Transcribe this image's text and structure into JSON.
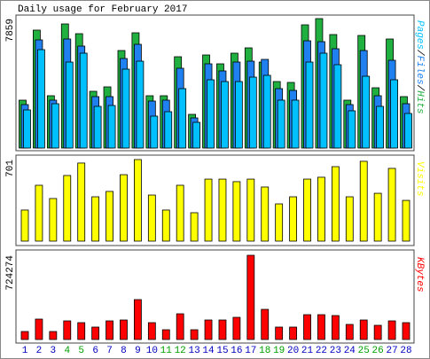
{
  "chart_data": [
    {
      "type": "bar",
      "title": "Daily usage for February 2017",
      "categories": [
        "1",
        "2",
        "3",
        "4",
        "5",
        "6",
        "7",
        "8",
        "9",
        "10",
        "11",
        "12",
        "13",
        "14",
        "15",
        "16",
        "17",
        "18",
        "19",
        "20",
        "21",
        "22",
        "23",
        "24",
        "25",
        "26",
        "27",
        "28"
      ],
      "legend_separator": "/",
      "series": [
        {
          "name": "Pages",
          "color": "#00c0ff",
          "values": [
            2315,
            5975,
            2692,
            5221,
            5760,
            2530,
            2584,
            4791,
            5275,
            1938,
            2207,
            3607,
            1561,
            4145,
            4037,
            4037,
            4306,
            4414,
            2907,
            2907,
            5221,
            5760,
            5060,
            2261,
            4360,
            2530,
            4145,
            2099
          ]
        },
        {
          "name": "Files",
          "color": "#2080f0",
          "values": [
            2638,
            6567,
            2907,
            6621,
            6190,
            3122,
            3122,
            5437,
            6298,
            2853,
            2907,
            4845,
            1830,
            5114,
            4683,
            5221,
            5275,
            5383,
            3607,
            3499,
            6513,
            6459,
            6029,
            2638,
            5921,
            3176,
            5329,
            2692
          ]
        },
        {
          "name": "Hits",
          "color": "#20b040",
          "values": [
            2907,
            7160,
            3176,
            7536,
            6944,
            3445,
            3714,
            5921,
            6998,
            3176,
            3176,
            5544,
            2045,
            5652,
            5114,
            5760,
            6083,
            5221,
            4037,
            3983,
            7482,
            7859,
            6890,
            2907,
            6836,
            3660,
            6621,
            3122
          ]
        }
      ],
      "ylim": [
        0,
        7859
      ],
      "yticks": [
        7859
      ]
    },
    {
      "type": "bar",
      "categories": [
        "1",
        "2",
        "3",
        "4",
        "5",
        "6",
        "7",
        "8",
        "9",
        "10",
        "11",
        "12",
        "13",
        "14",
        "15",
        "16",
        "17",
        "18",
        "19",
        "20",
        "21",
        "22",
        "23",
        "24",
        "25",
        "26",
        "27",
        "28"
      ],
      "series": [
        {
          "name": "Visits",
          "color": "#ffff00",
          "values": [
            267,
            480,
            366,
            564,
            671,
            381,
            427,
            571,
            701,
            396,
            267,
            480,
            244,
            533,
            533,
            511,
            533,
            465,
            320,
            381,
            533,
            549,
            640,
            381,
            686,
            411,
            625,
            350
          ]
        }
      ],
      "ylim": [
        0,
        701
      ],
      "yticks": [
        701
      ]
    },
    {
      "type": "bar",
      "categories": [
        "1",
        "2",
        "3",
        "4",
        "5",
        "6",
        "7",
        "8",
        "9",
        "10",
        "11",
        "12",
        "13",
        "14",
        "15",
        "16",
        "17",
        "18",
        "19",
        "20",
        "21",
        "22",
        "23",
        "24",
        "25",
        "26",
        "27",
        "28"
      ],
      "category_colors": [
        "#0000c0",
        "#0000c0",
        "#0000c0",
        "#00a000",
        "#00a000",
        "#0000c0",
        "#0000c0",
        "#0000c0",
        "#0000c0",
        "#0000c0",
        "#00a000",
        "#00a000",
        "#0000c0",
        "#0000c0",
        "#0000c0",
        "#0000c0",
        "#0000c0",
        "#00a000",
        "#00a000",
        "#0000c0",
        "#0000c0",
        "#0000c0",
        "#0000c0",
        "#0000c0",
        "#00a000",
        "#00a000",
        "#0000c0",
        "#0000c0"
      ],
      "series": [
        {
          "name": "KBytes",
          "color": "#ff0000",
          "values": [
            68616,
            175350,
            68616,
            160103,
            144854,
            106737,
            160103,
            167726,
            343077,
            144854,
            83863,
            221094,
            83863,
            167726,
            167726,
            190598,
            724274,
            259214,
            106737,
            106737,
            213470,
            213470,
            205846,
            129607,
            167726,
            121983,
            160103,
            144854
          ]
        }
      ],
      "ylim": [
        0,
        724274
      ],
      "yticks": [
        724274
      ]
    }
  ]
}
